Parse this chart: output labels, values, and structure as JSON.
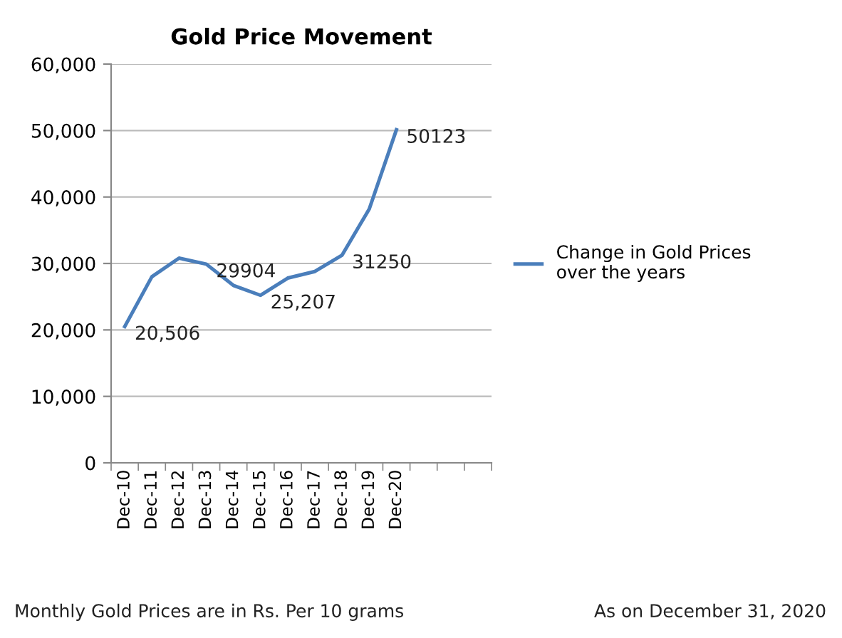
{
  "chart_data": {
    "type": "line",
    "title": "Gold Price Movement",
    "categories": [
      "Dec-10",
      "Dec-11",
      "Dec-12",
      "Dec-13",
      "Dec-14",
      "Dec-15",
      "Dec-16",
      "Dec-17",
      "Dec-18",
      "Dec-19",
      "Dec-20",
      null,
      null,
      null
    ],
    "series": [
      {
        "name": "Change in Gold Prices over the years",
        "color": "#4a7ebb",
        "values": [
          20506,
          28000,
          30800,
          29904,
          26700,
          25207,
          27800,
          28800,
          31250,
          38200,
          50123,
          null,
          null,
          null
        ],
        "value_labels": [
          "20,506",
          null,
          null,
          "29904",
          null,
          "25,207",
          null,
          null,
          "31250",
          null,
          "50123",
          null,
          null,
          null
        ]
      }
    ],
    "ylim": [
      0,
      60000
    ],
    "yticks": [
      {
        "value": 0,
        "label": "0"
      },
      {
        "value": 10000,
        "label": "10,000"
      },
      {
        "value": 20000,
        "label": "20,000"
      },
      {
        "value": 30000,
        "label": "30,000"
      },
      {
        "value": 40000,
        "label": "40,000"
      },
      {
        "value": 50000,
        "label": "50,000"
      },
      {
        "value": 60000,
        "label": "60,000"
      }
    ],
    "grid": "y",
    "legend": "right",
    "marker": "none",
    "line_style": "solid",
    "annotations": [
      "Monthly Gold Prices are in Rs. Per 10 grams",
      "As on December 31, 2020"
    ]
  }
}
